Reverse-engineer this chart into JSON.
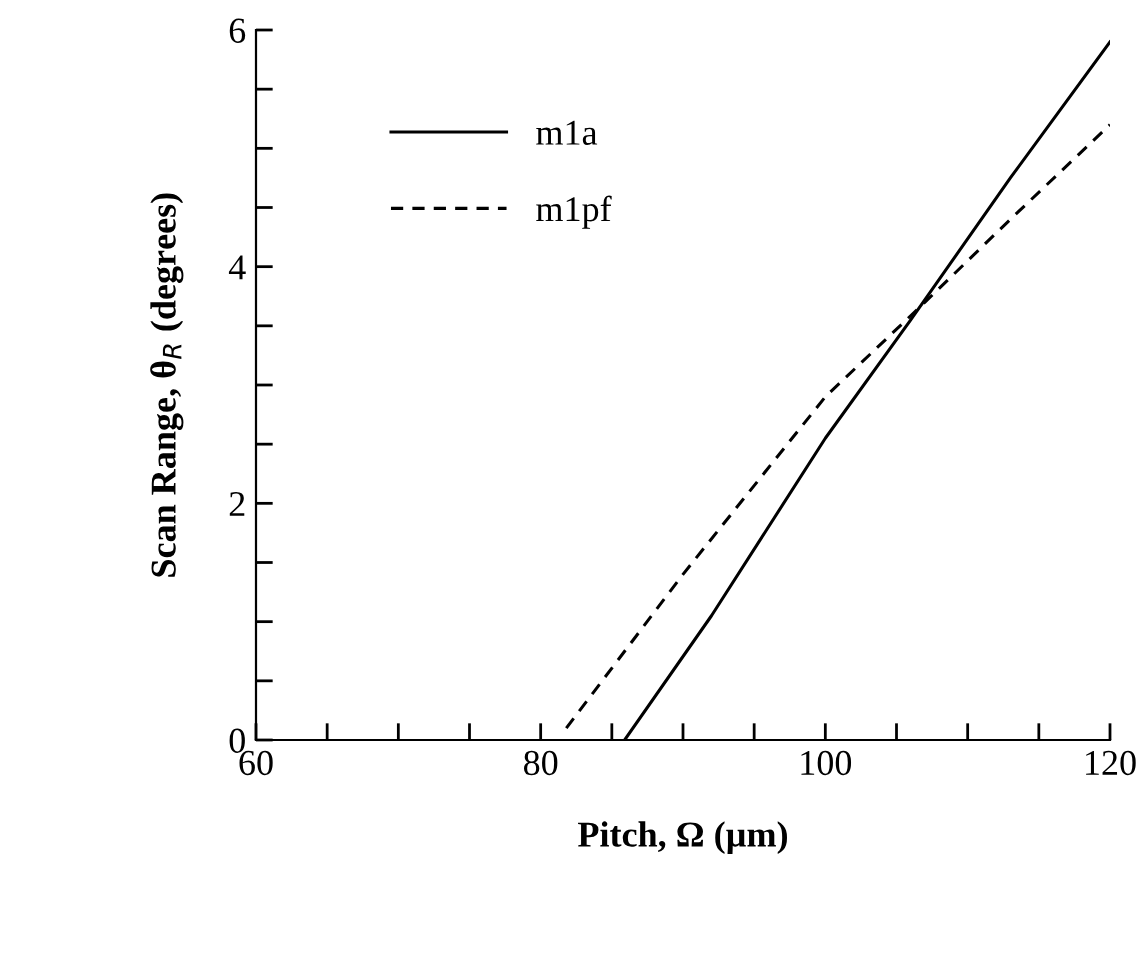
{
  "chart_data": {
    "type": "line",
    "xlabel": "Pitch, Ω (µm)",
    "ylabel": "Scan Range, θ$_{R}$ (degrees)",
    "series": [
      {
        "name": "m1a",
        "color": "#000000",
        "line_style": "solid",
        "x": [
          85.9,
          92,
          100,
          106,
          113,
          120
        ],
        "values": [
          0,
          1.05,
          2.55,
          3.55,
          4.75,
          5.9
        ]
      },
      {
        "name": "m1pf",
        "color": "#000000",
        "line_style": "dashed",
        "x": [
          81.8,
          90,
          100,
          107,
          113,
          120
        ],
        "values": [
          0.1,
          1.4,
          2.9,
          3.7,
          4.4,
          5.2
        ]
      }
    ],
    "xlim": [
      60,
      120
    ],
    "ylim": [
      0,
      6
    ],
    "xticks": [
      60,
      {
        "value": 65,
        "label": null
      },
      {
        "value": 70,
        "label": null
      },
      {
        "value": 75,
        "label": null
      },
      80,
      {
        "value": 85,
        "label": null
      },
      {
        "value": 90,
        "label": null
      },
      {
        "value": 95,
        "label": null
      },
      100,
      {
        "value": 105,
        "label": null
      },
      {
        "value": 110,
        "label": null
      },
      {
        "value": 115,
        "label": null
      },
      120
    ],
    "yticks": [
      0,
      {
        "value": 0.5,
        "label": null
      },
      {
        "value": 1,
        "label": null
      },
      {
        "value": 1.5,
        "label": null
      },
      2,
      {
        "value": 2.5,
        "label": null
      },
      {
        "value": 3,
        "label": null
      },
      {
        "value": 3.5,
        "label": null
      },
      4,
      {
        "value": 4.5,
        "label": null
      },
      {
        "value": 5,
        "label": null
      },
      {
        "value": 5.5,
        "label": null
      },
      6
    ],
    "grid": false,
    "legend": "top left",
    "marker": "none"
  }
}
